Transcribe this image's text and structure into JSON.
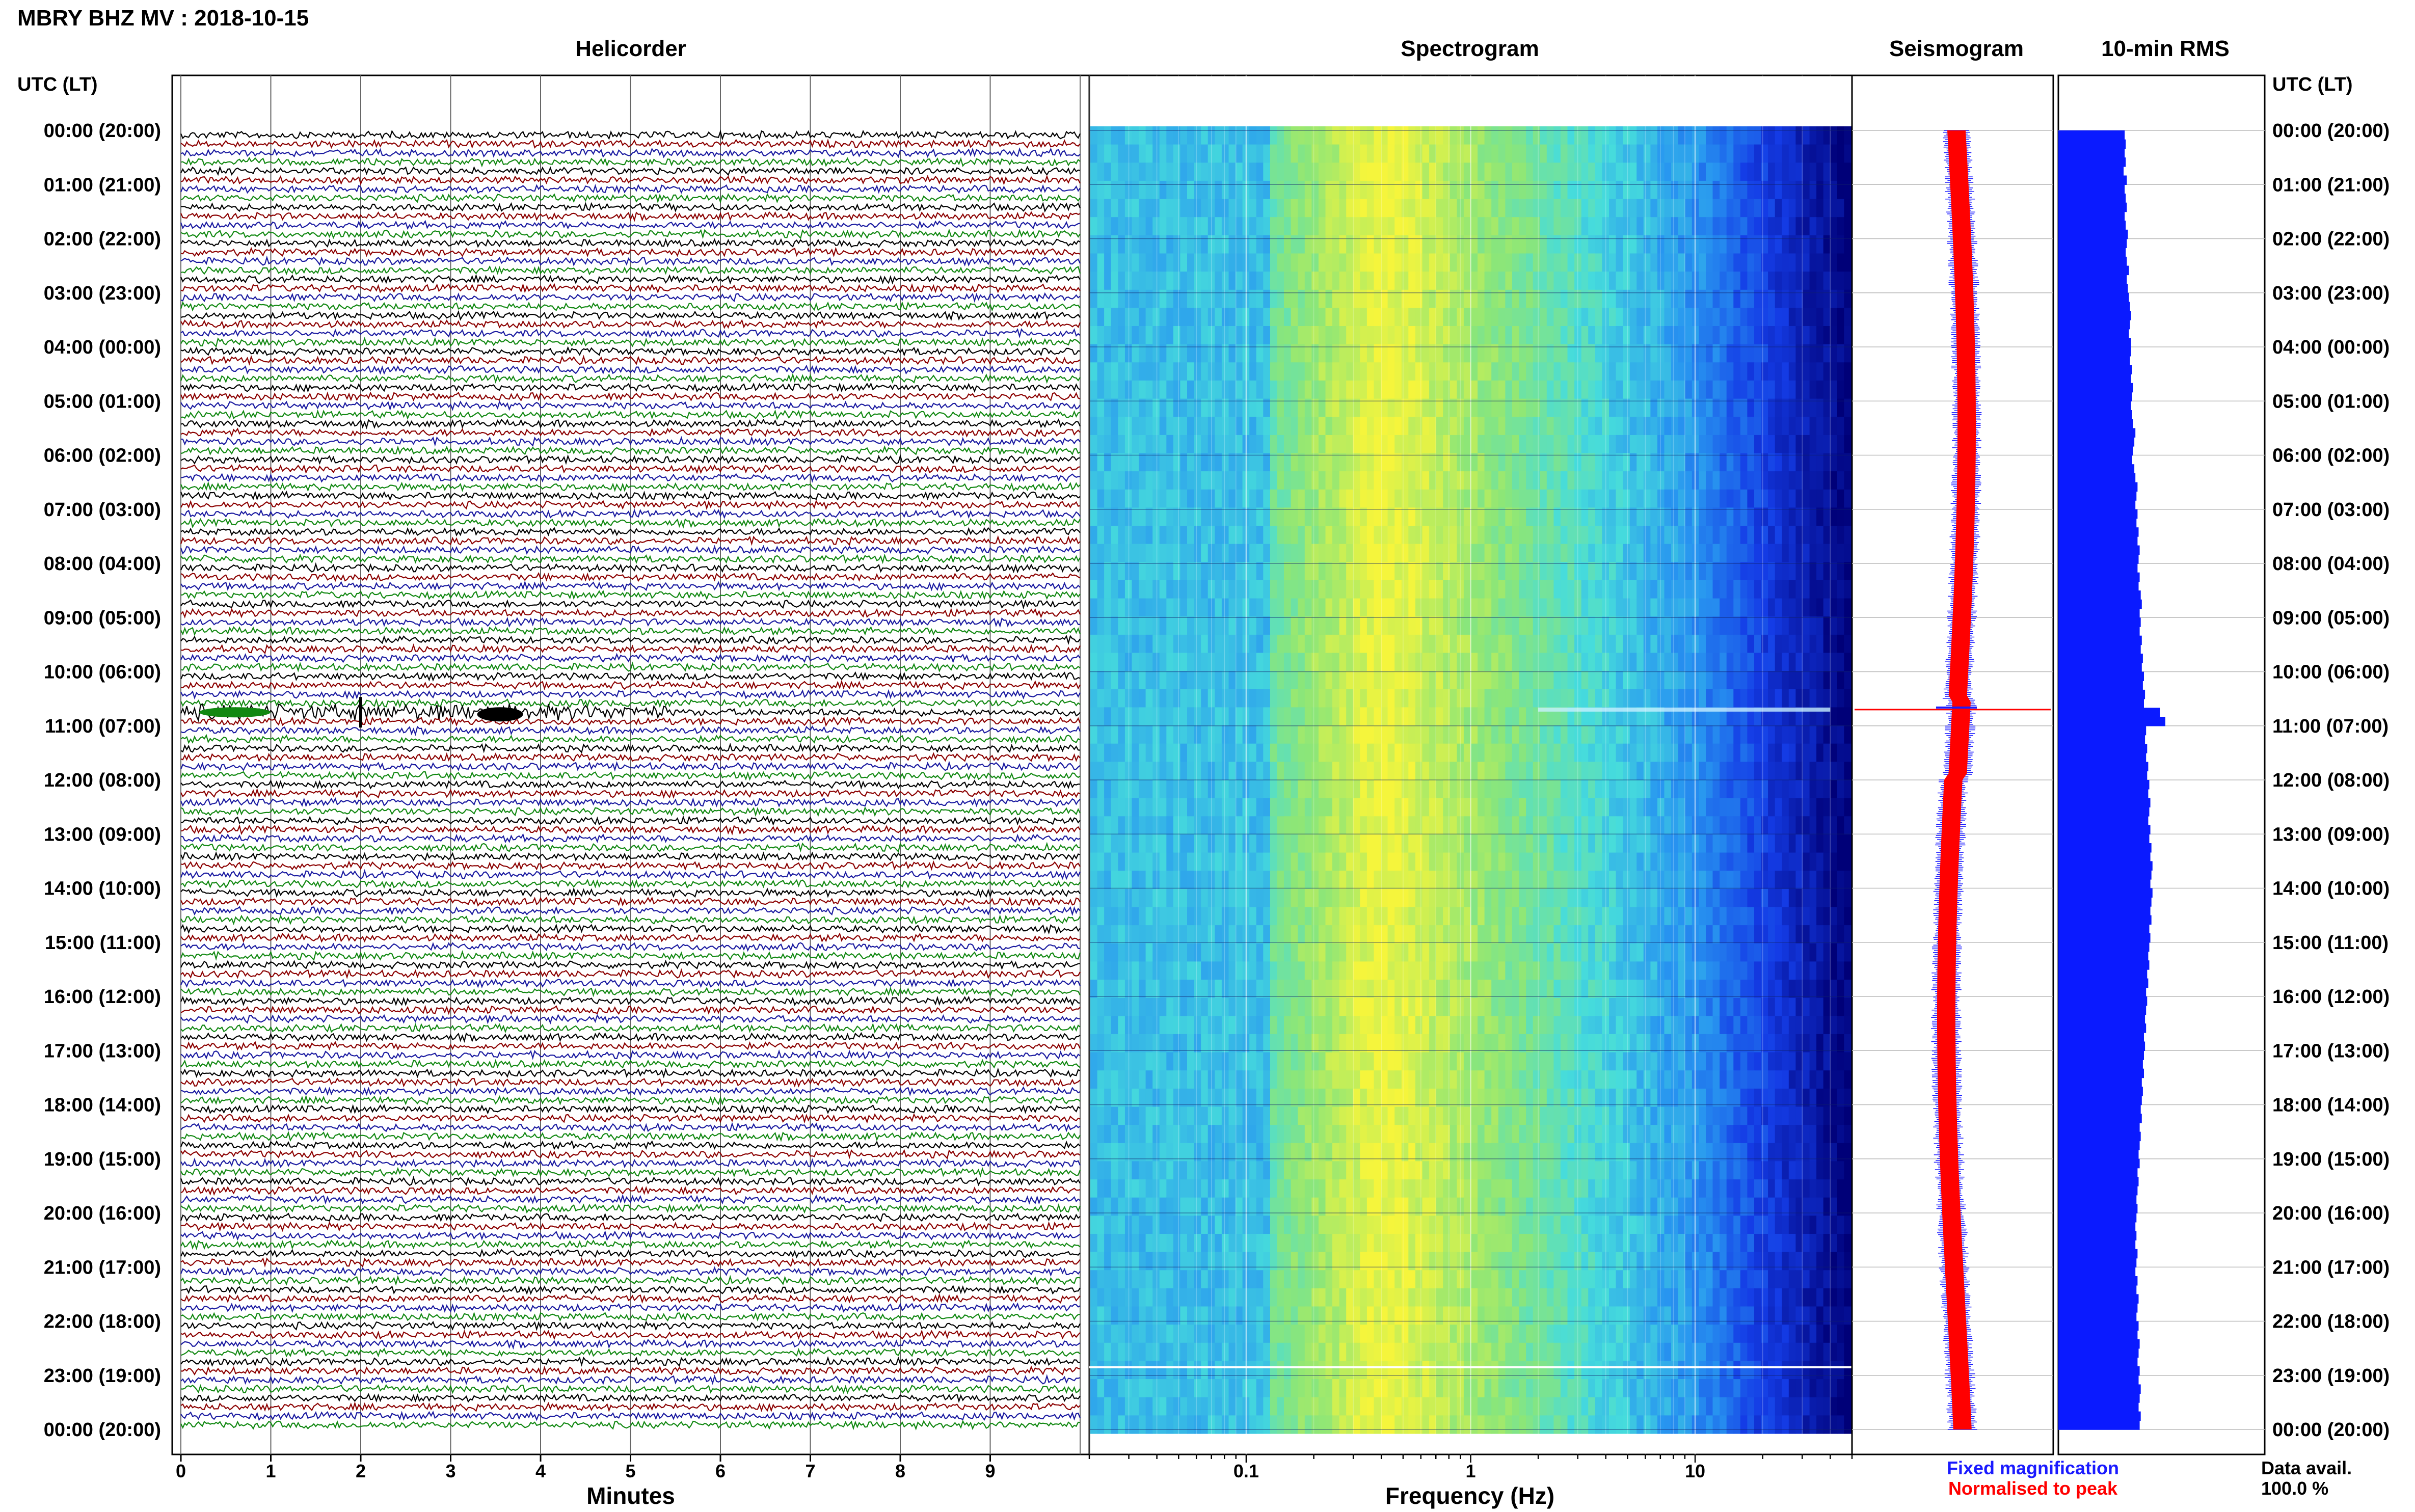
{
  "header": {
    "station_title": "MBRY BHZ MV : 2018-10-15"
  },
  "panels": {
    "helicorder": "Helicorder",
    "spectrogram": "Spectrogram",
    "seismogram": "Seismogram",
    "rms": "10-min RMS"
  },
  "axis_labels": {
    "time_left": "UTC (LT)",
    "time_right": "UTC (LT)",
    "minutes": "Minutes",
    "frequency": "Frequency (Hz)"
  },
  "legend": {
    "fixed": "Fixed magnification",
    "normalised": "Normalised to peak",
    "fixed_color": "#1a1aff",
    "normalised_color": "#ff0000"
  },
  "data_availability": {
    "label": "Data avail.",
    "value": "100.0 %"
  },
  "colors": {
    "trace_cycle": [
      "#000000",
      "#8b0000",
      "#1a1aa0",
      "#118811"
    ],
    "rms_bar": "#0a1aff",
    "seismo_red": "#ff0000",
    "seismo_blue": "#1a1aff",
    "spectrogram_low": "#00008b",
    "spectrogram_high": "#ffff33"
  },
  "chart_data": {
    "type": "heatmap",
    "time_ticks": [
      "00:00 (20:00)",
      "01:00 (21:00)",
      "02:00 (22:00)",
      "03:00 (23:00)",
      "04:00 (00:00)",
      "05:00 (01:00)",
      "06:00 (02:00)",
      "07:00 (03:00)",
      "08:00 (04:00)",
      "09:00 (05:00)",
      "10:00 (06:00)",
      "11:00 (07:00)",
      "12:00 (08:00)",
      "13:00 (09:00)",
      "14:00 (10:00)",
      "15:00 (11:00)",
      "16:00 (12:00)",
      "17:00 (13:00)",
      "18:00 (14:00)",
      "19:00 (15:00)",
      "20:00 (16:00)",
      "21:00 (17:00)",
      "22:00 (18:00)",
      "23:00 (19:00)",
      "00:00 (20:00)"
    ],
    "minutes_ticks": [
      "0",
      "1",
      "2",
      "3",
      "4",
      "5",
      "6",
      "7",
      "8",
      "9"
    ],
    "minutes_range": [
      0,
      10
    ],
    "frequency_ticks": [
      "0.1",
      "1",
      "10"
    ],
    "frequency_range": [
      0.02,
      50
    ],
    "frequency_scale": "log",
    "hours": 24,
    "helicorder_lines": 144,
    "rms_values": [
      0.62,
      0.63,
      0.62,
      0.63,
      0.61,
      0.64,
      0.62,
      0.63,
      0.64,
      0.62,
      0.63,
      0.65,
      0.64,
      0.63,
      0.64,
      0.66,
      0.64,
      0.65,
      0.66,
      0.67,
      0.68,
      0.67,
      0.66,
      0.68,
      0.68,
      0.67,
      0.69,
      0.68,
      0.7,
      0.69,
      0.68,
      0.69,
      0.7,
      0.72,
      0.71,
      0.7,
      0.69,
      0.71,
      0.72,
      0.74,
      0.73,
      0.72,
      0.74,
      0.73,
      0.75,
      0.74,
      0.76,
      0.75,
      0.74,
      0.76,
      0.75,
      0.77,
      0.78,
      0.76,
      0.77,
      0.76,
      0.78,
      0.77,
      0.79,
      0.78,
      0.8,
      0.79,
      0.81,
      0.8,
      0.95,
      1.0,
      0.82,
      0.81,
      0.83,
      0.82,
      0.84,
      0.83,
      0.85,
      0.84,
      0.86,
      0.85,
      0.84,
      0.86,
      0.85,
      0.87,
      0.86,
      0.88,
      0.87,
      0.86,
      0.88,
      0.87,
      0.86,
      0.87,
      0.85,
      0.86,
      0.85,
      0.84,
      0.85,
      0.83,
      0.84,
      0.82,
      0.83,
      0.82,
      0.81,
      0.82,
      0.8,
      0.81,
      0.8,
      0.79,
      0.8,
      0.78,
      0.79,
      0.78,
      0.77,
      0.78,
      0.76,
      0.77,
      0.76,
      0.75,
      0.76,
      0.74,
      0.75,
      0.74,
      0.73,
      0.74,
      0.73,
      0.72,
      0.73,
      0.72,
      0.74,
      0.73,
      0.72,
      0.74,
      0.73,
      0.75,
      0.74,
      0.73,
      0.75,
      0.74,
      0.76,
      0.75,
      0.74,
      0.76,
      0.75,
      0.77,
      0.76,
      0.75,
      0.77,
      0.76
    ],
    "event_hour": 10.7,
    "grid": true
  }
}
